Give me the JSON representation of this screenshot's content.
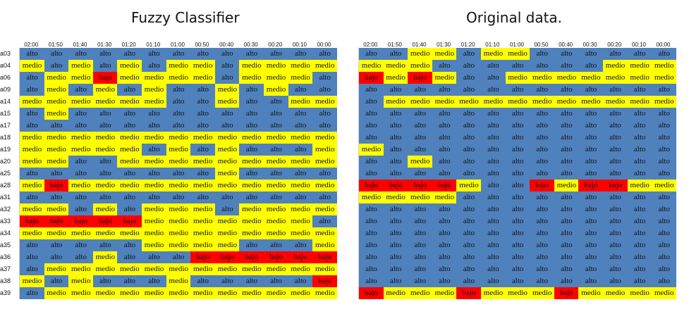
{
  "left_title": "Fuzzy Classifier",
  "right_title": "Original data.",
  "times": [
    "02:00",
    "01:50",
    "01:40",
    "01:30",
    "01:20",
    "01:10",
    "01:00",
    "00:50",
    "00:40",
    "00:30",
    "00:20",
    "00:10",
    "00:00"
  ],
  "row_labels": [
    "a03",
    "a04",
    "a06",
    "a09",
    "a14",
    "a15",
    "a17",
    "a18",
    "a19",
    "a20",
    "a25",
    "a28",
    "a31",
    "a32",
    "a33",
    "a34",
    "a35",
    "a36",
    "a37",
    "a38",
    "a39"
  ],
  "colors": {
    "alto": "#4f81bd",
    "medio": "#ffff00",
    "bajo": "#ff0000"
  },
  "fuzzy": [
    [
      "alto",
      "alto",
      "alto",
      "alto",
      "alto",
      "alto",
      "alto",
      "alto",
      "alto",
      "alto",
      "alto",
      "alto",
      "alto"
    ],
    [
      "medio",
      "alto",
      "medio",
      "alto",
      "medio",
      "alto",
      "medio",
      "medio",
      "alto",
      "medio",
      "medio",
      "medio",
      "medio"
    ],
    [
      "alto",
      "medio",
      "medio",
      "bajo",
      "medio",
      "medio",
      "medio",
      "medio",
      "alto",
      "medio",
      "medio",
      "medio",
      "alto"
    ],
    [
      "alto",
      "medio",
      "alto",
      "medio",
      "alto",
      "medio",
      "alto",
      "alto",
      "medio",
      "alto",
      "medio",
      "alto",
      "alto"
    ],
    [
      "medio",
      "medio",
      "medio",
      "medio",
      "medio",
      "medio",
      "alto",
      "alto",
      "medio",
      "alto",
      "alto",
      "medio",
      "medio"
    ],
    [
      "alto",
      "medio",
      "alto",
      "alto",
      "alto",
      "alto",
      "alto",
      "alto",
      "alto",
      "alto",
      "alto",
      "alto",
      "alto"
    ],
    [
      "alto",
      "alto",
      "alto",
      "alto",
      "alto",
      "alto",
      "alto",
      "alto",
      "alto",
      "alto",
      "alto",
      "alto",
      "alto"
    ],
    [
      "medio",
      "medio",
      "medio",
      "medio",
      "medio",
      "medio",
      "medio",
      "medio",
      "medio",
      "medio",
      "medio",
      "medio",
      "medio"
    ],
    [
      "medio",
      "medio",
      "medio",
      "medio",
      "medio",
      "alto",
      "medio",
      "alto",
      "medio",
      "alto",
      "alto",
      "alto",
      "medio"
    ],
    [
      "medio",
      "medio",
      "alto",
      "alto",
      "medio",
      "medio",
      "medio",
      "medio",
      "medio",
      "medio",
      "medio",
      "medio",
      "medio"
    ],
    [
      "alto",
      "alto",
      "alto",
      "alto",
      "alto",
      "alto",
      "alto",
      "alto",
      "medio",
      "alto",
      "alto",
      "alto",
      "alto"
    ],
    [
      "medio",
      "bajo",
      "medio",
      "medio",
      "medio",
      "medio",
      "medio",
      "medio",
      "medio",
      "medio",
      "medio",
      "medio",
      "medio"
    ],
    [
      "alto",
      "alto",
      "alto",
      "alto",
      "alto",
      "alto",
      "alto",
      "alto",
      "alto",
      "alto",
      "alto",
      "alto",
      "alto"
    ],
    [
      "medio",
      "medio",
      "alto",
      "medio",
      "alto",
      "medio",
      "medio",
      "medio",
      "alto",
      "medio",
      "medio",
      "medio",
      "medio"
    ],
    [
      "bajo",
      "bajo",
      "bajo",
      "bajo",
      "bajo",
      "medio",
      "medio",
      "medio",
      "medio",
      "medio",
      "medio",
      "medio",
      "alto"
    ],
    [
      "medio",
      "medio",
      "medio",
      "medio",
      "medio",
      "medio",
      "medio",
      "medio",
      "medio",
      "medio",
      "medio",
      "medio",
      "medio"
    ],
    [
      "alto",
      "alto",
      "alto",
      "alto",
      "alto",
      "medio",
      "medio",
      "medio",
      "medio",
      "alto",
      "alto",
      "alto",
      "medio"
    ],
    [
      "alto",
      "alto",
      "alto",
      "medio",
      "alto",
      "alto",
      "alto",
      "bajo",
      "bajo",
      "bajo",
      "bajo",
      "bajo",
      "bajo"
    ],
    [
      "alto",
      "medio",
      "medio",
      "medio",
      "medio",
      "medio",
      "medio",
      "medio",
      "medio",
      "medio",
      "medio",
      "medio",
      "medio"
    ],
    [
      "medio",
      "alto",
      "medio",
      "alto",
      "alto",
      "alto",
      "medio",
      "alto",
      "alto",
      "alto",
      "alto",
      "alto",
      "bajo"
    ],
    [
      "alto",
      "medio",
      "medio",
      "medio",
      "medio",
      "medio",
      "medio",
      "medio",
      "medio",
      "medio",
      "medio",
      "medio",
      "medio"
    ]
  ],
  "original": [
    [
      "alto",
      "alto",
      "medio",
      "medio",
      "alto",
      "medio",
      "medio",
      "alto",
      "alto",
      "alto",
      "alto",
      "alto",
      "alto"
    ],
    [
      "medio",
      "medio",
      "medio",
      "alto",
      "alto",
      "alto",
      "alto",
      "alto",
      "alto",
      "alto",
      "medio",
      "medio",
      "medio"
    ],
    [
      "bajo",
      "medio",
      "bajo",
      "medio",
      "alto",
      "alto",
      "medio",
      "medio",
      "medio",
      "medio",
      "medio",
      "medio",
      "medio"
    ],
    [
      "alto",
      "alto",
      "alto",
      "alto",
      "alto",
      "alto",
      "alto",
      "alto",
      "alto",
      "alto",
      "alto",
      "alto",
      "alto"
    ],
    [
      "alto",
      "medio",
      "medio",
      "medio",
      "medio",
      "medio",
      "medio",
      "medio",
      "medio",
      "medio",
      "medio",
      "medio",
      "medio"
    ],
    [
      "alto",
      "alto",
      "alto",
      "alto",
      "alto",
      "alto",
      "alto",
      "alto",
      "alto",
      "alto",
      "alto",
      "alto",
      "alto"
    ],
    [
      "alto",
      "alto",
      "alto",
      "alto",
      "alto",
      "alto",
      "alto",
      "alto",
      "alto",
      "alto",
      "alto",
      "alto",
      "alto"
    ],
    [
      "alto",
      "alto",
      "alto",
      "alto",
      "alto",
      "alto",
      "alto",
      "alto",
      "alto",
      "alto",
      "alto",
      "alto",
      "alto"
    ],
    [
      "medio",
      "alto",
      "alto",
      "alto",
      "alto",
      "alto",
      "alto",
      "alto",
      "alto",
      "alto",
      "alto",
      "alto",
      "alto"
    ],
    [
      "alto",
      "alto",
      "medio",
      "alto",
      "alto",
      "alto",
      "alto",
      "alto",
      "alto",
      "alto",
      "alto",
      "alto",
      "alto"
    ],
    [
      "alto",
      "alto",
      "alto",
      "alto",
      "alto",
      "alto",
      "alto",
      "alto",
      "alto",
      "alto",
      "alto",
      "alto",
      "alto"
    ],
    [
      "bajo",
      "bajo",
      "bajo",
      "bajo",
      "medio",
      "alto",
      "alto",
      "bajo",
      "medio",
      "bajo",
      "bajo",
      "medio",
      "medio"
    ],
    [
      "medio",
      "medio",
      "medio",
      "medio",
      "alto",
      "alto",
      "alto",
      "alto",
      "alto",
      "alto",
      "alto",
      "alto",
      "alto"
    ],
    [
      "alto",
      "alto",
      "alto",
      "alto",
      "alto",
      "alto",
      "alto",
      "alto",
      "alto",
      "alto",
      "alto",
      "alto",
      "alto"
    ],
    [
      "alto",
      "alto",
      "alto",
      "alto",
      "alto",
      "alto",
      "alto",
      "alto",
      "alto",
      "alto",
      "alto",
      "alto",
      "alto"
    ],
    [
      "alto",
      "alto",
      "alto",
      "alto",
      "alto",
      "alto",
      "alto",
      "alto",
      "alto",
      "alto",
      "alto",
      "alto",
      "alto"
    ],
    [
      "alto",
      "alto",
      "alto",
      "alto",
      "alto",
      "alto",
      "alto",
      "alto",
      "alto",
      "alto",
      "alto",
      "alto",
      "alto"
    ],
    [
      "alto",
      "alto",
      "alto",
      "alto",
      "alto",
      "alto",
      "alto",
      "alto",
      "alto",
      "alto",
      "alto",
      "alto",
      "alto"
    ],
    [
      "alto",
      "alto",
      "alto",
      "alto",
      "alto",
      "alto",
      "alto",
      "alto",
      "alto",
      "alto",
      "alto",
      "alto",
      "alto"
    ],
    [
      "alto",
      "alto",
      "alto",
      "alto",
      "alto",
      "alto",
      "alto",
      "alto",
      "alto",
      "alto",
      "alto",
      "alto",
      "alto"
    ],
    [
      "bajo",
      "medio",
      "medio",
      "medio",
      "bajo",
      "medio",
      "medio",
      "medio",
      "bajo",
      "medio",
      "medio",
      "medio",
      "medio"
    ]
  ]
}
